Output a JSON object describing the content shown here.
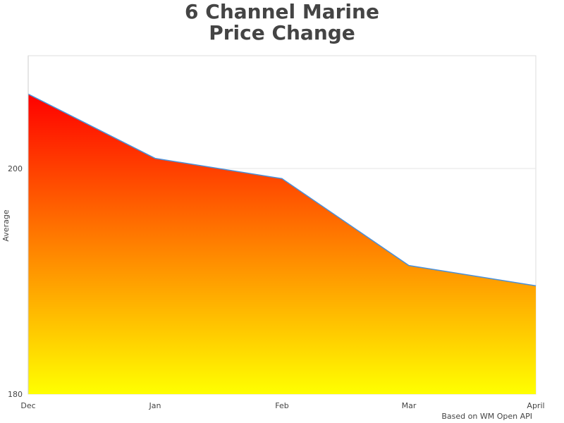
{
  "chart_data": {
    "type": "area",
    "title_line1": "6 Channel Marine",
    "title_line2": "Price Change",
    "xlabel": "",
    "ylabel": "Average",
    "categories": [
      "Dec",
      "Jan",
      "Feb",
      "Mar",
      "April"
    ],
    "values": [
      206.6,
      200.9,
      199.1,
      191.4,
      189.6
    ],
    "ylim": [
      180,
      210
    ],
    "yticks": [
      "180",
      "200"
    ],
    "grid": true,
    "legend": "none",
    "fill_gradient": {
      "top": "#ff0000",
      "bottom": "#ffff00"
    },
    "line_color": "#4a90d9",
    "credit": "Based on WM Open API"
  }
}
